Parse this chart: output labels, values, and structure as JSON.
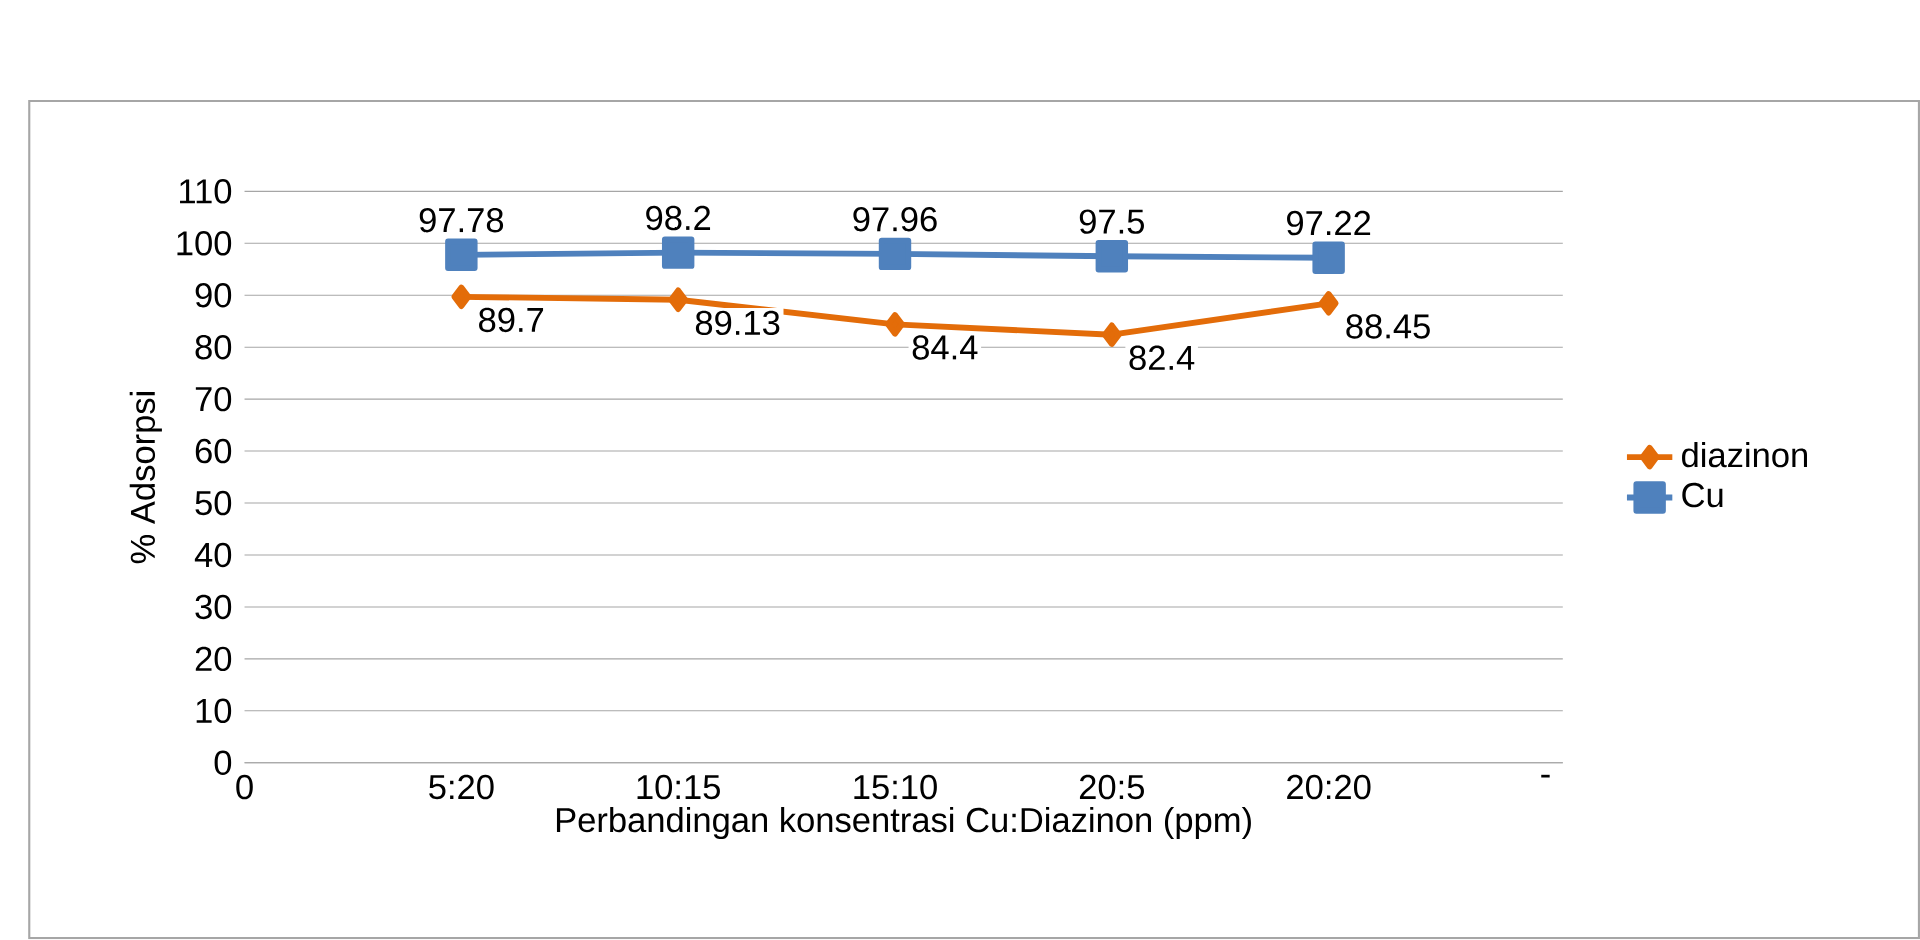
{
  "chart_data": {
    "type": "line",
    "xlabel": "Perbandingan konsentrasi Cu:Diazinon (ppm)",
    "ylabel": "% Adsorpsi",
    "categories": [
      "0",
      "5:20",
      "10:15",
      "15:10",
      "20:5",
      "20:20",
      "-"
    ],
    "series": [
      {
        "name": "diazinon",
        "color": "#e36c09",
        "marker": "diamond",
        "values": [
          null,
          89.7,
          89.13,
          84.4,
          82.4,
          88.45,
          null
        ]
      },
      {
        "name": "Cu",
        "color": "#4f81bd",
        "marker": "square",
        "values": [
          null,
          97.78,
          98.2,
          97.96,
          97.5,
          97.22,
          null
        ]
      }
    ],
    "ylim": [
      0,
      110
    ],
    "yticks": [
      0,
      10,
      20,
      30,
      40,
      50,
      60,
      70,
      80,
      90,
      100,
      110
    ],
    "grid": "y",
    "legend": "right",
    "data_labels": true
  }
}
